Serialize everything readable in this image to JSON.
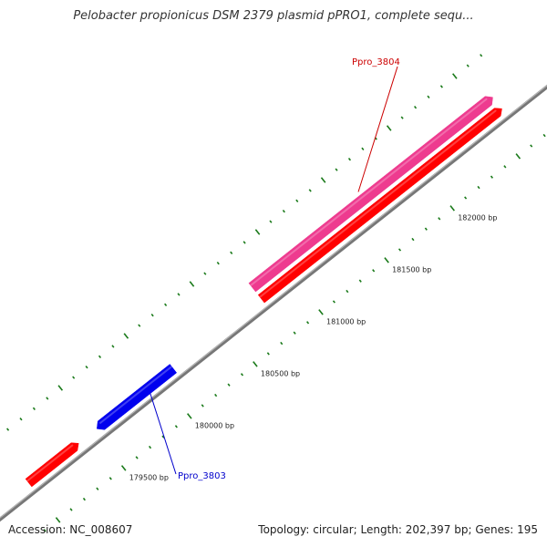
{
  "title": "Pelobacter propionicus DSM 2379 plasmid pPRO1, complete sequ...",
  "footer": {
    "accession": "Accession: NC_008607",
    "summary": "Topology: circular; Length: 202,397 bp; Genes: 195"
  },
  "colors": {
    "backbone": "#777777",
    "tick": "#1a7a1a",
    "forward_cds": "#ff0000",
    "forward_gene": "#ee3b8f",
    "reverse_cds": "#0000ee",
    "label_forward": "#cc0000",
    "label_reverse": "#0000cc"
  },
  "scale_ticks": [
    {
      "position": 179500,
      "label": "179500 bp"
    },
    {
      "position": 180000,
      "label": "180000 bp"
    },
    {
      "position": 180500,
      "label": "180500 bp"
    },
    {
      "position": 181000,
      "label": "181000 bp"
    },
    {
      "position": 181500,
      "label": "181500 bp"
    },
    {
      "position": 182000,
      "label": "182000 bp"
    }
  ],
  "features": [
    {
      "name": "Ppro_3803",
      "strand": "reverse",
      "color_key": "reverse_cds",
      "start": 179520,
      "end": 180100
    },
    {
      "name": "Ppro_3804",
      "strand": "forward",
      "color_key": "forward_gene",
      "start": 180770,
      "end": 182600
    },
    {
      "name": "",
      "strand": "forward",
      "color_key": "forward_cds",
      "start": 180770,
      "end": 182600
    },
    {
      "name": "",
      "strand": "forward",
      "color_key": "forward_cds",
      "start": 179000,
      "end": 179380
    }
  ]
}
